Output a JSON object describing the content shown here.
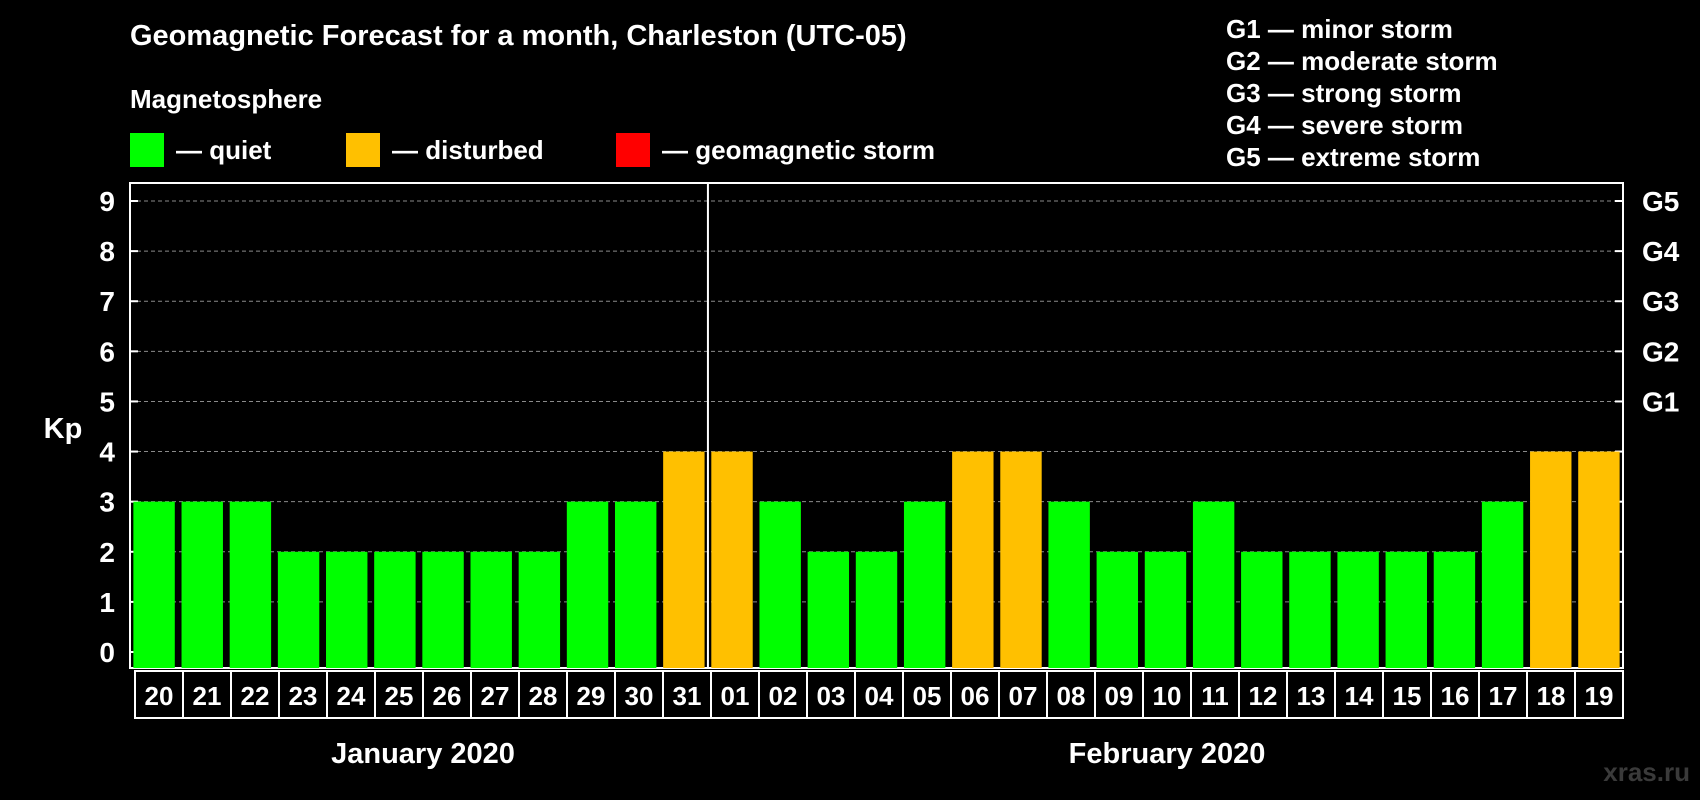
{
  "title": "Geomagnetic Forecast for a month, Charleston (UTC-05)",
  "subtitle": "Magnetosphere",
  "legend": [
    {
      "label": "— quiet",
      "color": "#00ff00"
    },
    {
      "label": "— disturbed",
      "color": "#ffc000"
    },
    {
      "label": "— geomagnetic storm",
      "color": "#ff0000"
    }
  ],
  "storm_scale": [
    "G1 — minor storm",
    "G2 — moderate storm",
    "G3 — strong storm",
    "G4 — severe storm",
    "G5 — extreme storm"
  ],
  "watermark": "xras.ru",
  "chart_data": {
    "type": "bar",
    "ylabel": "Kp",
    "ylim": [
      0,
      9
    ],
    "yticks": [
      0,
      1,
      2,
      3,
      4,
      5,
      6,
      7,
      8,
      9
    ],
    "right_axis_labels": [
      {
        "value": 5,
        "label": "G1"
      },
      {
        "value": 6,
        "label": "G2"
      },
      {
        "value": 7,
        "label": "G3"
      },
      {
        "value": 8,
        "label": "G4"
      },
      {
        "value": 9,
        "label": "G5"
      }
    ],
    "grid": "horizontal dashed",
    "categories": [
      "20",
      "21",
      "22",
      "23",
      "24",
      "25",
      "26",
      "27",
      "28",
      "29",
      "30",
      "31",
      "01",
      "02",
      "03",
      "04",
      "05",
      "06",
      "07",
      "08",
      "09",
      "10",
      "11",
      "12",
      "13",
      "14",
      "15",
      "16",
      "17",
      "18",
      "19"
    ],
    "values": [
      3,
      3,
      3,
      2,
      2,
      2,
      2,
      2,
      2,
      3,
      3,
      4,
      4,
      3,
      2,
      2,
      3,
      4,
      4,
      3,
      2,
      2,
      3,
      2,
      2,
      2,
      2,
      2,
      3,
      4,
      4
    ],
    "status": [
      "quiet",
      "quiet",
      "quiet",
      "quiet",
      "quiet",
      "quiet",
      "quiet",
      "quiet",
      "quiet",
      "quiet",
      "quiet",
      "disturbed",
      "disturbed",
      "quiet",
      "quiet",
      "quiet",
      "quiet",
      "disturbed",
      "disturbed",
      "quiet",
      "quiet",
      "quiet",
      "quiet",
      "quiet",
      "quiet",
      "quiet",
      "quiet",
      "quiet",
      "quiet",
      "disturbed",
      "disturbed"
    ],
    "status_colors": {
      "quiet": "#00ff00",
      "disturbed": "#ffc000",
      "storm": "#ff0000"
    },
    "months": [
      {
        "label": "January 2020",
        "start": 0,
        "end": 11
      },
      {
        "label": "February 2020",
        "start": 12,
        "end": 30
      }
    ]
  }
}
